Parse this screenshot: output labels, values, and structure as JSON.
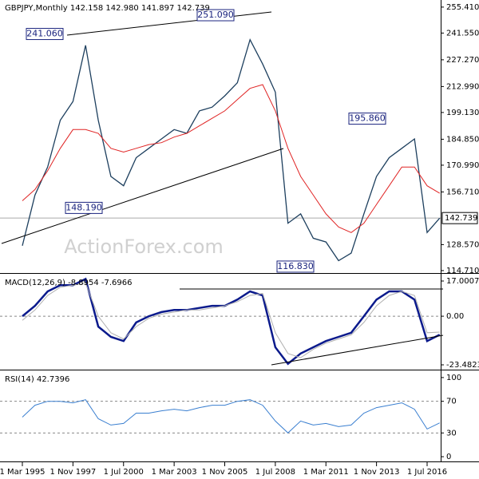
{
  "chart_data": [
    {
      "type": "line",
      "title": "GBPJPY,Monthly  142.158 142.980 141.897 142.739",
      "watermark": "ActionForex.com",
      "series": [
        {
          "color": "#1d3f5e",
          "values": [
            128,
            155,
            170,
            195,
            205,
            235,
            195,
            165,
            160,
            175,
            180,
            185,
            190,
            188,
            200,
            202,
            208,
            215,
            238,
            225,
            210,
            140,
            145,
            132,
            130,
            120,
            124,
            145,
            165,
            175,
            180,
            185,
            135,
            142.739
          ]
        },
        {
          "color": "#e02424",
          "values": [
            152,
            158,
            168,
            180,
            190,
            190,
            188,
            180,
            178,
            180,
            182,
            183,
            186,
            188,
            192,
            196,
            200,
            206,
            212,
            214,
            200,
            180,
            165,
            155,
            145,
            138,
            135,
            140,
            150,
            160,
            170,
            170,
            160,
            156
          ]
        }
      ],
      "ylim": [
        113.4,
        259.2
      ],
      "yticks": [
        {
          "value": 255.41,
          "label": "255.410"
        },
        {
          "value": 241.55,
          "label": "241.550"
        },
        {
          "value": 227.27,
          "label": "227.270"
        },
        {
          "value": 212.99,
          "label": "212.990"
        },
        {
          "value": 199.13,
          "label": "199.130"
        },
        {
          "value": 184.85,
          "label": "184.850"
        },
        {
          "value": 170.99,
          "label": "170.990"
        },
        {
          "value": 156.71,
          "label": "156.710"
        },
        {
          "value": 128.57,
          "label": "128.570"
        },
        {
          "value": 114.71,
          "label": "114.710"
        }
      ],
      "last_value": 142.739,
      "annotations": [
        {
          "value": 241.06,
          "label": "241.060"
        },
        {
          "value": 251.09,
          "label": "251.090"
        },
        {
          "value": 148.19,
          "label": "148.190"
        },
        {
          "value": 116.83,
          "label": "116.830"
        },
        {
          "value": 195.86,
          "label": "195.860"
        }
      ]
    },
    {
      "type": "line",
      "title": "MACD(12,26,9) -8.8954 -7.6966",
      "series": [
        {
          "color": "#0b1a8c",
          "values": [
            0,
            5,
            12,
            15,
            15,
            18,
            -5,
            -10,
            -12,
            -3,
            0,
            2,
            3,
            3,
            4,
            5,
            5,
            8,
            12,
            10,
            -15,
            -23,
            -18,
            -15,
            -12,
            -10,
            -8,
            0,
            8,
            12,
            12,
            8,
            -12,
            -8.8954
          ]
        },
        {
          "color": "#b0b0b0",
          "values": [
            -2,
            3,
            10,
            14,
            15,
            16,
            0,
            -8,
            -11,
            -5,
            -1,
            1,
            2,
            3,
            3,
            4,
            5,
            7,
            10,
            11,
            -8,
            -18,
            -20,
            -16,
            -13,
            -11,
            -9,
            -3,
            5,
            10,
            12,
            10,
            -8,
            -7.6966
          ]
        }
      ],
      "ylim": [
        -25.8,
        20.08
      ],
      "yticks": [
        17.0007,
        {
          "value": 0,
          "label": "0.00"
        },
        -23.4823
      ],
      "reference_lines": [
        0
      ]
    },
    {
      "type": "line",
      "title": "RSI(14) 42.7396",
      "categories": [
        "1 Mar 1995",
        null,
        null,
        null,
        "1 Nov 1997",
        null,
        null,
        null,
        "1 Jul 2000",
        null,
        null,
        null,
        "1 Mar 2003",
        null,
        null,
        null,
        "1 Nov 2005",
        null,
        null,
        null,
        "1 Jul 2008",
        null,
        null,
        null,
        "1 Mar 2011",
        null,
        null,
        null,
        "1 Nov 2013",
        null,
        null,
        null,
        "1 Jul 2016",
        null
      ],
      "series": [
        {
          "color": "#3a7fd0",
          "values": [
            50,
            65,
            70,
            70,
            68,
            72,
            48,
            40,
            42,
            55,
            55,
            58,
            60,
            58,
            62,
            65,
            65,
            70,
            72,
            65,
            45,
            30,
            45,
            40,
            42,
            38,
            40,
            55,
            62,
            65,
            68,
            60,
            35,
            42.7396
          ]
        }
      ],
      "ylim": [
        -6,
        108
      ],
      "yticks": [
        100,
        70,
        30,
        0
      ],
      "reference_lines": [
        70,
        30
      ]
    }
  ]
}
